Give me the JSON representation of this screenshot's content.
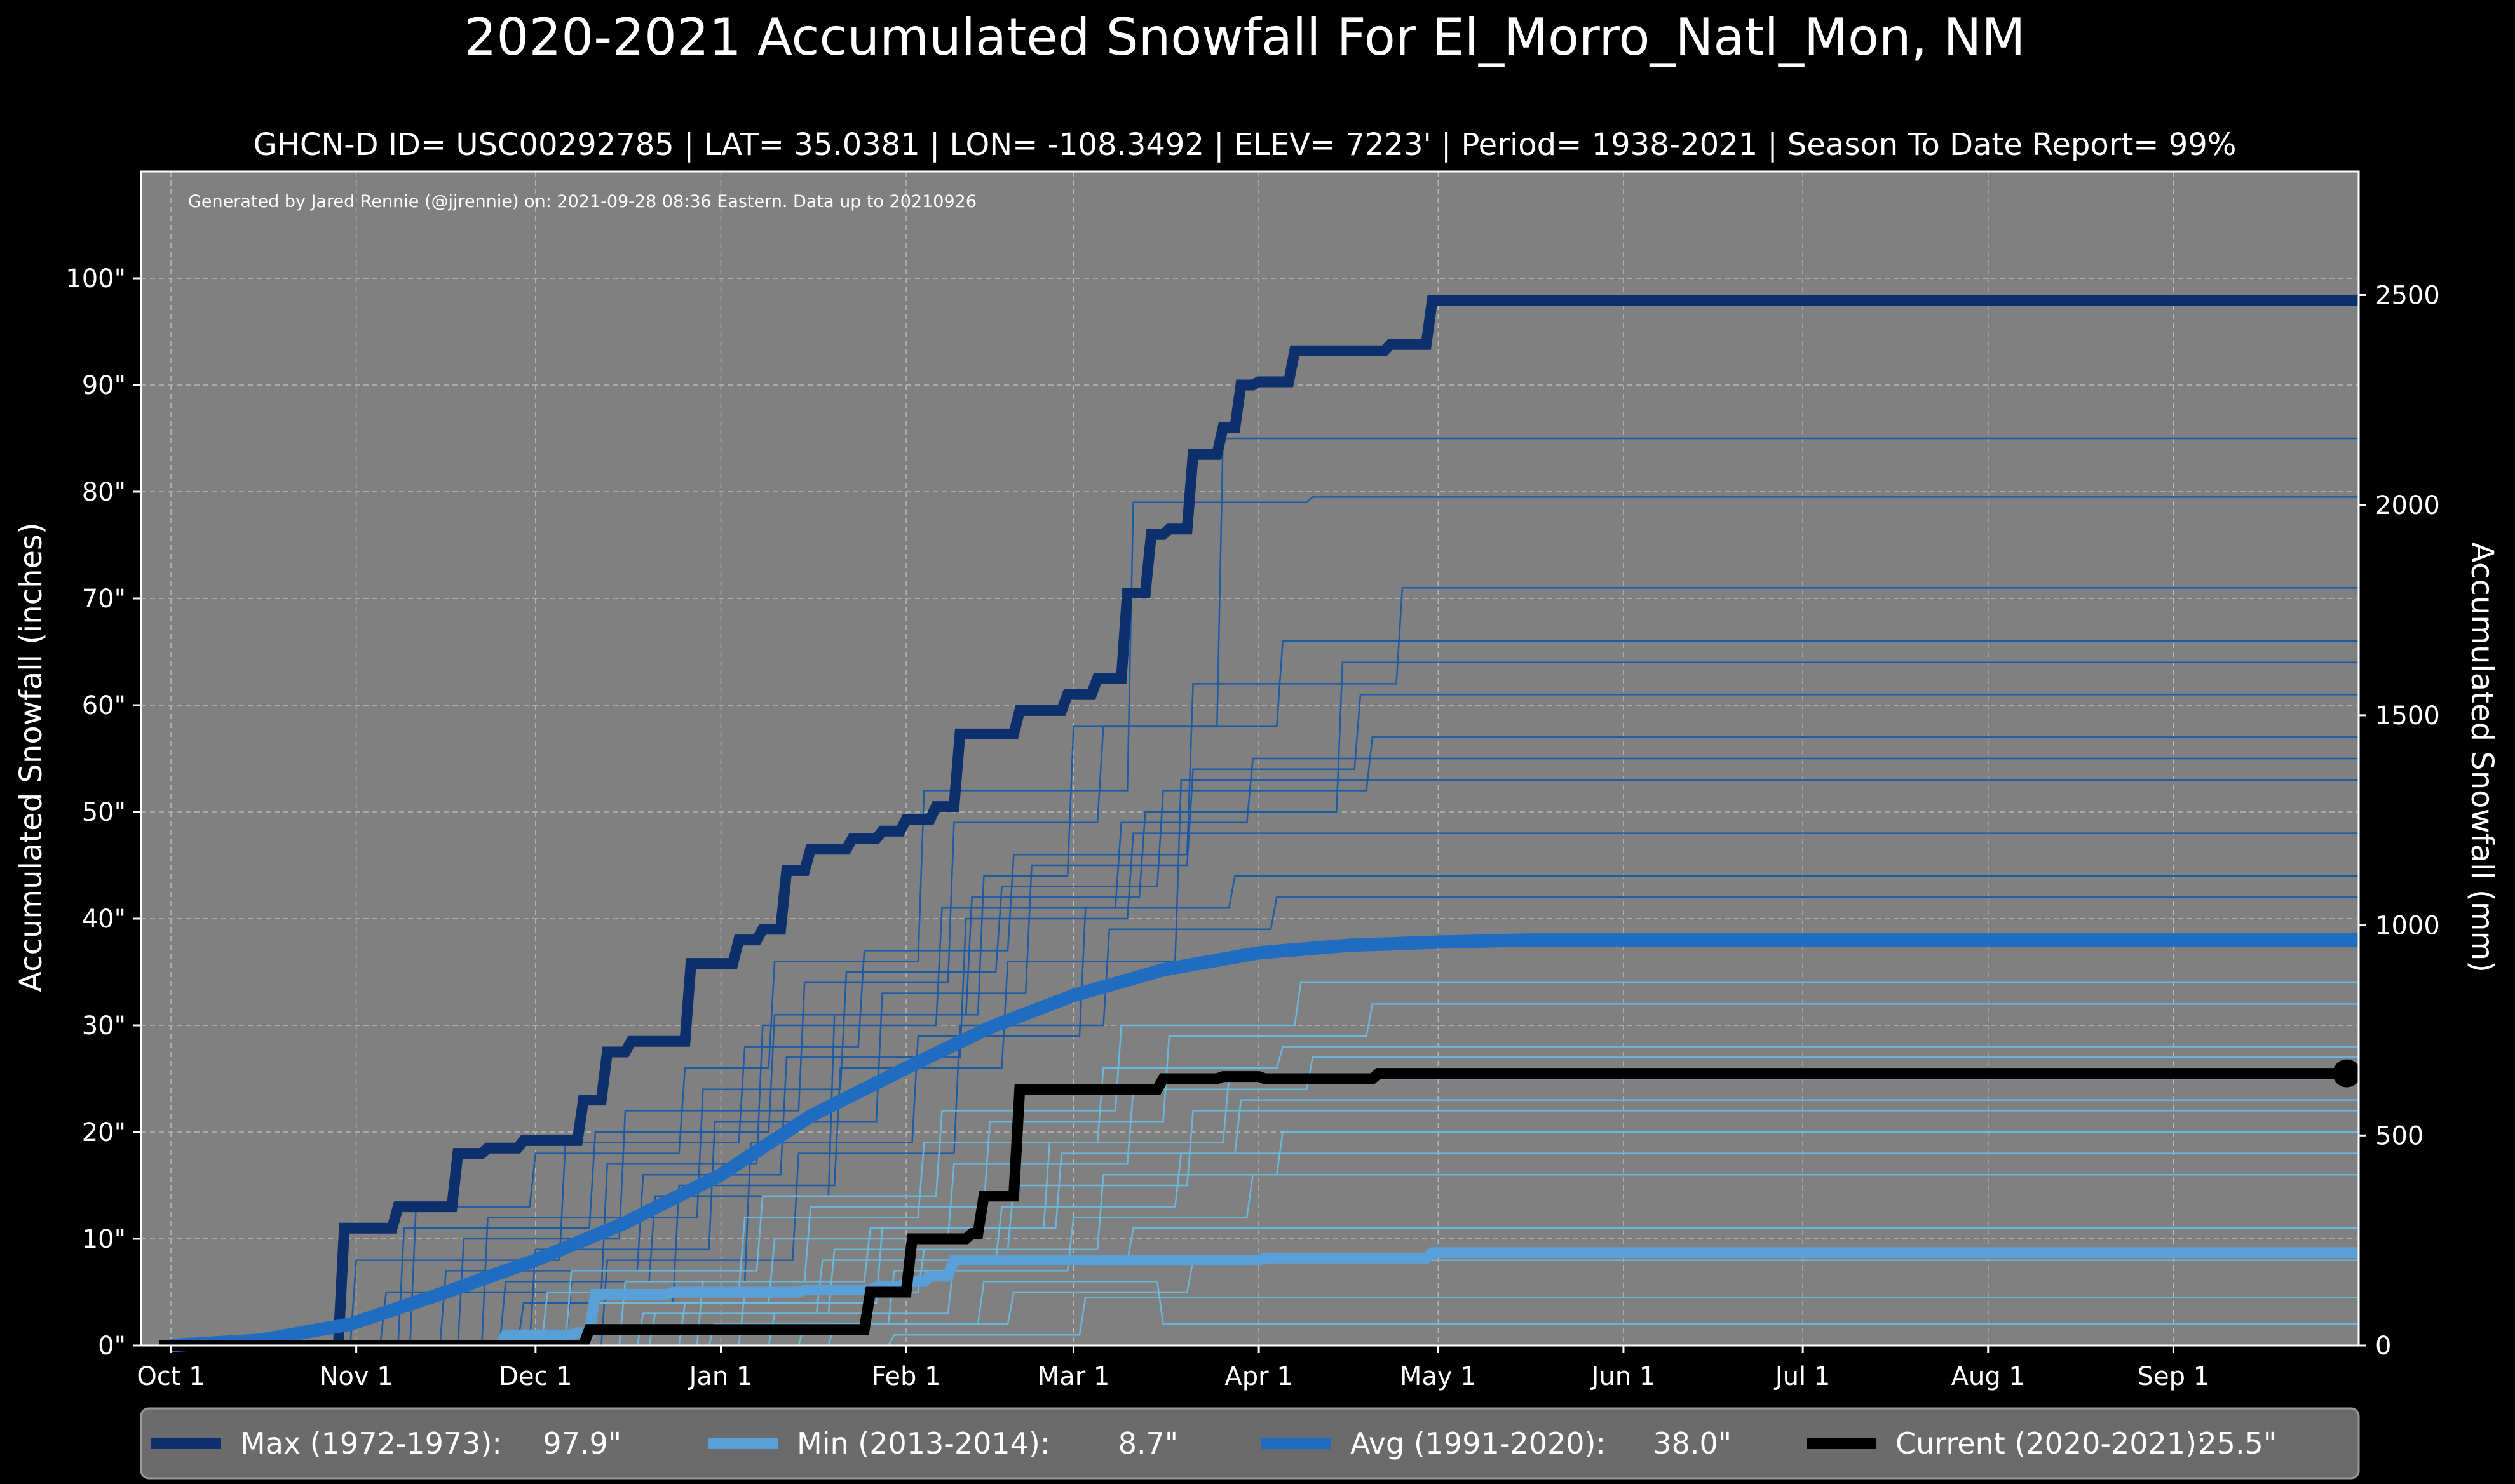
{
  "chart_data": {
    "type": "line",
    "title": "2020-2021 Accumulated Snowfall For El_Morro_Natl_Mon, NM",
    "subtitle": "GHCN-D ID= USC00292785 | LAT= 35.0381 | LON= -108.3492 | ELEV= 7223' | Period= 1938-2021 | Season To Date Report= 99%",
    "credit": "Generated by Jared Rennie (@jjrennie) on: 2021-09-28 08:36 Eastern. Data up to 20210926",
    "ylabel": "Accumulated Snowfall (inches)",
    "ylabel_right": "Accumulated Snowfall (mm)",
    "x_unit": "day of season (0 = Oct 1)",
    "xlim": [
      -5,
      366
    ],
    "ylim": [
      0,
      110
    ],
    "ylim_right_mm": [
      0,
      2794
    ],
    "x_ticks": [
      {
        "label": "Oct 1",
        "day": 0
      },
      {
        "label": "Nov 1",
        "day": 31
      },
      {
        "label": "Dec 1",
        "day": 61
      },
      {
        "label": "Jan 1",
        "day": 92
      },
      {
        "label": "Feb 1",
        "day": 123
      },
      {
        "label": "Mar 1",
        "day": 151
      },
      {
        "label": "Apr 1",
        "day": 182
      },
      {
        "label": "May 1",
        "day": 212
      },
      {
        "label": "Jun 1",
        "day": 243
      },
      {
        "label": "Jul 1",
        "day": 273
      },
      {
        "label": "Aug 1",
        "day": 304
      },
      {
        "label": "Sep 1",
        "day": 335
      }
    ],
    "y_ticks": [
      {
        "label": "0\"",
        "value": 0
      },
      {
        "label": "10\"",
        "value": 10
      },
      {
        "label": "20\"",
        "value": 20
      },
      {
        "label": "30\"",
        "value": 30
      },
      {
        "label": "40\"",
        "value": 40
      },
      {
        "label": "50\"",
        "value": 50
      },
      {
        "label": "60\"",
        "value": 60
      },
      {
        "label": "70\"",
        "value": 70
      },
      {
        "label": "80\"",
        "value": 80
      },
      {
        "label": "90\"",
        "value": 90
      },
      {
        "label": "100\"",
        "value": 100
      }
    ],
    "y_ticks_right": [
      {
        "label": "0",
        "value": 0
      },
      {
        "label": "500",
        "value": 500
      },
      {
        "label": "1000",
        "value": 1000
      },
      {
        "label": "1500",
        "value": 1500
      },
      {
        "label": "2000",
        "value": 2000
      },
      {
        "label": "2500",
        "value": 2500
      }
    ],
    "grid": true,
    "legend_position": "bottom",
    "series": [
      {
        "name": "Max (1972-1973)",
        "total": "97.9\"",
        "color": "#0d2f6c",
        "role": "max",
        "x": [
          -2,
          28,
          29,
          37,
          38,
          47,
          48,
          52,
          53,
          58,
          59,
          68,
          69,
          72,
          73,
          76,
          77,
          80,
          81,
          86,
          87,
          94,
          95,
          98,
          99,
          102,
          103,
          106,
          107,
          113,
          114,
          118,
          119,
          122,
          123,
          127,
          128,
          131,
          132,
          137,
          138,
          141,
          142,
          149,
          150,
          154,
          155,
          159,
          160,
          163,
          164,
          166,
          167,
          170,
          171,
          175,
          176,
          178,
          179,
          181,
          182,
          187,
          188,
          203,
          204,
          210,
          211,
          216,
          217,
          366
        ],
        "y": [
          0,
          0,
          11,
          11,
          13,
          13,
          18,
          18,
          18.5,
          18.5,
          19.2,
          19.2,
          23,
          23,
          27.5,
          27.5,
          28.5,
          28.5,
          28.5,
          28.5,
          35.8,
          35.8,
          38,
          38,
          39,
          39,
          44.5,
          44.5,
          46.5,
          46.5,
          47.5,
          47.5,
          48.2,
          48.2,
          49.3,
          49.3,
          50.5,
          50.5,
          57.3,
          57.3,
          57.3,
          57.3,
          59.5,
          59.5,
          61,
          61,
          62.5,
          62.5,
          70.5,
          70.5,
          76,
          76,
          76.5,
          76.5,
          83.5,
          83.5,
          86,
          86,
          90,
          90,
          90.3,
          90.3,
          93.2,
          93.2,
          93.8,
          93.8,
          97.9,
          97.9,
          97.9,
          97.9
        ]
      },
      {
        "name": "Min (2013-2014)",
        "total": "8.7\"",
        "color": "#5aa0d8",
        "role": "min",
        "x": [
          -2,
          55,
          56,
          67,
          68,
          70,
          71,
          83,
          84,
          105,
          106,
          117,
          118,
          122,
          123,
          126,
          127,
          130,
          131,
          182,
          183,
          210,
          211,
          366
        ],
        "y": [
          0,
          0,
          1,
          1,
          1.2,
          1.2,
          4.8,
          4.8,
          5,
          5,
          5.2,
          5.2,
          5.5,
          5.5,
          6,
          6,
          6.5,
          6.5,
          8,
          8,
          8.2,
          8.2,
          8.7,
          8.7
        ]
      },
      {
        "name": "Avg (1991-2020)",
        "total": "38.0\"",
        "color": "#1f6cc0",
        "role": "avg",
        "x": [
          0,
          15,
          30,
          46,
          61,
          76,
          92,
          107,
          123,
          137,
          151,
          166,
          182,
          197,
          212,
          227,
          243,
          366
        ],
        "y": [
          0,
          0.5,
          2,
          5,
          8,
          11.5,
          16,
          21.5,
          26,
          29.8,
          32.8,
          35.2,
          36.8,
          37.5,
          37.8,
          38,
          38,
          38
        ]
      },
      {
        "name": "Current (2020-2021)",
        "total": "25.5\"",
        "color": "#000000",
        "role": "current",
        "x": [
          -2,
          69,
          70,
          114,
          115,
          116,
          117,
          119,
          120,
          123,
          124,
          133,
          134,
          135,
          136,
          141,
          142,
          165,
          166,
          168,
          169,
          175,
          176,
          182,
          183,
          201,
          202,
          364
        ],
        "y": [
          0,
          0,
          1.5,
          1.5,
          1.5,
          1.5,
          5,
          5,
          5,
          5,
          10,
          10,
          10.5,
          10.5,
          14,
          14,
          24,
          24,
          25,
          25,
          25,
          25,
          25.2,
          25.2,
          25,
          25,
          25.5,
          25.5
        ]
      }
    ],
    "historical_seasons": [
      {
        "style": "dark",
        "x": [
          40,
          41,
          60,
          61,
          85,
          86,
          100,
          101,
          125,
          126,
          160,
          161,
          190,
          191,
          366
        ],
        "y": [
          0,
          13,
          13,
          18,
          18,
          26,
          26,
          36,
          36,
          52,
          52,
          79,
          79,
          79.5,
          79.5
        ]
      },
      {
        "style": "dark",
        "x": [
          55,
          56,
          80,
          81,
          110,
          111,
          135,
          136,
          150,
          151,
          175,
          176,
          366
        ],
        "y": [
          0,
          6,
          6,
          14,
          14,
          31,
          31,
          44,
          44,
          58,
          58,
          85,
          85
        ]
      },
      {
        "style": "dark",
        "x": [
          30,
          31,
          65,
          66,
          95,
          96,
          115,
          116,
          140,
          141,
          170,
          171,
          205,
          206,
          366
        ],
        "y": [
          0,
          8,
          8,
          19,
          19,
          28,
          28,
          37,
          37,
          46,
          46,
          62,
          62,
          71,
          71
        ]
      },
      {
        "style": "dark",
        "x": [
          48,
          49,
          75,
          76,
          105,
          106,
          130,
          131,
          155,
          156,
          185,
          186,
          366
        ],
        "y": [
          0,
          10,
          10,
          22,
          22,
          34,
          34,
          49,
          49,
          58,
          58,
          66,
          66
        ]
      },
      {
        "style": "dark",
        "x": [
          35,
          36,
          72,
          73,
          98,
          99,
          128,
          129,
          158,
          159,
          180,
          181,
          366
        ],
        "y": [
          0,
          5,
          5,
          17,
          17,
          30,
          30,
          41,
          41,
          49,
          49,
          55,
          55
        ]
      },
      {
        "style": "dark",
        "x": [
          60,
          61,
          90,
          91,
          118,
          119,
          143,
          144,
          170,
          171,
          198,
          199,
          366
        ],
        "y": [
          0,
          9,
          9,
          21,
          21,
          33,
          33,
          45,
          45,
          54,
          54,
          61,
          61
        ]
      },
      {
        "style": "dark",
        "x": [
          45,
          46,
          78,
          79,
          102,
          103,
          132,
          133,
          160,
          161,
          366
        ],
        "y": [
          0,
          7,
          7,
          16,
          16,
          27,
          27,
          40,
          40,
          48,
          48
        ]
      },
      {
        "style": "dark",
        "x": [
          52,
          53,
          88,
          89,
          112,
          113,
          138,
          139,
          165,
          166,
          200,
          201,
          366
        ],
        "y": [
          0,
          12,
          12,
          24,
          24,
          35,
          35,
          43,
          43,
          52,
          52,
          57,
          57
        ]
      },
      {
        "style": "dark",
        "x": [
          66,
          67,
          96,
          97,
          124,
          125,
          152,
          153,
          177,
          178,
          366
        ],
        "y": [
          0,
          6,
          6,
          19,
          19,
          29,
          29,
          41,
          41,
          44,
          44
        ]
      },
      {
        "style": "dark",
        "x": [
          38,
          39,
          70,
          71,
          100,
          101,
          133,
          134,
          162,
          163,
          195,
          196,
          366
        ],
        "y": [
          0,
          11,
          11,
          20,
          20,
          31,
          31,
          42,
          42,
          50,
          50,
          64,
          64
        ]
      },
      {
        "style": "dark",
        "x": [
          72,
          73,
          104,
          105,
          131,
          132,
          156,
          157,
          184,
          185,
          366
        ],
        "y": [
          0,
          8,
          8,
          18,
          18,
          30,
          30,
          39,
          39,
          42,
          42
        ]
      },
      {
        "style": "dark",
        "x": [
          58,
          59,
          84,
          85,
          111,
          112,
          139,
          140,
          168,
          169,
          366
        ],
        "y": [
          0,
          4,
          4,
          15,
          15,
          26,
          26,
          36,
          36,
          53,
          53
        ]
      },
      {
        "style": "light",
        "x": [
          70,
          71,
          100,
          101,
          130,
          131,
          160,
          161,
          190,
          191,
          366
        ],
        "y": [
          0,
          4,
          4,
          10,
          10,
          17,
          17,
          24,
          24,
          27,
          27
        ]
      },
      {
        "style": "light",
        "x": [
          80,
          81,
          110,
          111,
          140,
          141,
          170,
          171,
          366
        ],
        "y": [
          0,
          3,
          3,
          9,
          9,
          15,
          15,
          22,
          22
        ]
      },
      {
        "style": "light",
        "x": [
          62,
          63,
          95,
          96,
          125,
          126,
          155,
          156,
          185,
          186,
          366
        ],
        "y": [
          0,
          5,
          5,
          12,
          12,
          19,
          19,
          26,
          26,
          28,
          28
        ]
      },
      {
        "style": "light",
        "x": [
          90,
          91,
          120,
          121,
          150,
          151,
          180,
          181,
          366
        ],
        "y": [
          0,
          2,
          2,
          7,
          7,
          12,
          12,
          16,
          16
        ]
      },
      {
        "style": "light",
        "x": [
          75,
          76,
          106,
          107,
          136,
          137,
          166,
          167,
          200,
          201,
          366
        ],
        "y": [
          0,
          6,
          6,
          13,
          13,
          21,
          21,
          29,
          29,
          32,
          32
        ]
      },
      {
        "style": "light",
        "x": [
          100,
          101,
          130,
          131,
          160,
          161,
          366
        ],
        "y": [
          0,
          3,
          3,
          8,
          8,
          11,
          11
        ]
      },
      {
        "style": "light",
        "x": [
          85,
          86,
          118,
          119,
          148,
          149,
          178,
          179,
          366
        ],
        "y": [
          0,
          4,
          4,
          11,
          11,
          18,
          18,
          23,
          23
        ]
      },
      {
        "style": "light",
        "x": [
          66,
          67,
          98,
          99,
          128,
          129,
          158,
          159,
          188,
          189,
          366
        ],
        "y": [
          0,
          7,
          7,
          14,
          14,
          22,
          22,
          30,
          30,
          34,
          34
        ]
      },
      {
        "style": "light",
        "x": [
          110,
          111,
          140,
          141,
          170,
          171,
          366
        ],
        "y": [
          0,
          2,
          2,
          5,
          5,
          8,
          8
        ]
      },
      {
        "style": "light",
        "x": [
          95,
          96,
          125,
          126,
          155,
          156,
          185,
          186,
          366
        ],
        "y": [
          0,
          5,
          5,
          9,
          9,
          16,
          16,
          20,
          20
        ]
      },
      {
        "style": "light",
        "x": [
          120,
          121,
          152,
          153,
          366
        ],
        "y": [
          0,
          1,
          1,
          4.5,
          4.5
        ]
      },
      {
        "style": "light",
        "x": [
          78,
          79,
          108,
          109,
          138,
          139,
          168,
          169,
          366
        ],
        "y": [
          0,
          3,
          3,
          8,
          8,
          13,
          13,
          18,
          18
        ]
      },
      {
        "style": "light",
        "x": [
          88,
          89,
          116,
          117,
          146,
          147,
          176,
          177,
          366
        ],
        "y": [
          0,
          6,
          6,
          11,
          11,
          19,
          19,
          25,
          25
        ]
      },
      {
        "style": "light",
        "x": [
          105,
          106,
          135,
          136,
          165,
          166,
          366
        ],
        "y": [
          0,
          2,
          2,
          6,
          6,
          2,
          2
        ]
      }
    ]
  }
}
